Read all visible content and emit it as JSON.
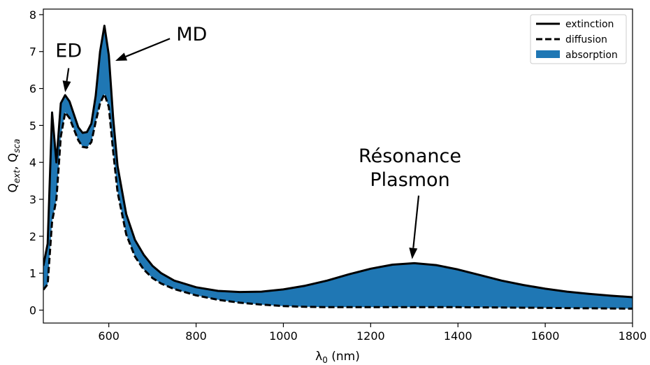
{
  "chart_data": {
    "type": "line",
    "xlabel": "λ",
    "xlabel_sub": "0",
    "xlabel_unit": " (nm)",
    "ylabel_parts": [
      "Q",
      "ext",
      ", Q",
      "sca"
    ],
    "xlim": [
      450,
      1800
    ],
    "ylim": [
      -0.35,
      8.15
    ],
    "xticks": [
      600,
      800,
      1000,
      1200,
      1400,
      1600,
      1800
    ],
    "yticks": [
      0,
      1,
      2,
      3,
      4,
      5,
      6,
      7,
      8
    ],
    "legend_position": "top-right",
    "colors": {
      "absorption": "#1f77b4",
      "line": "#000000"
    },
    "series": [
      {
        "name": "extinction",
        "style": "solid",
        "points": [
          [
            450,
            1.2
          ],
          [
            460,
            1.8
          ],
          [
            470,
            5.35
          ],
          [
            480,
            4.0
          ],
          [
            490,
            5.6
          ],
          [
            500,
            5.82
          ],
          [
            510,
            5.65
          ],
          [
            520,
            5.3
          ],
          [
            530,
            4.95
          ],
          [
            540,
            4.8
          ],
          [
            550,
            4.82
          ],
          [
            560,
            5.05
          ],
          [
            570,
            5.8
          ],
          [
            580,
            7.0
          ],
          [
            590,
            7.7
          ],
          [
            600,
            6.9
          ],
          [
            610,
            5.2
          ],
          [
            620,
            3.9
          ],
          [
            640,
            2.6
          ],
          [
            660,
            1.9
          ],
          [
            680,
            1.5
          ],
          [
            700,
            1.2
          ],
          [
            720,
            1.0
          ],
          [
            750,
            0.8
          ],
          [
            800,
            0.62
          ],
          [
            850,
            0.52
          ],
          [
            900,
            0.49
          ],
          [
            950,
            0.5
          ],
          [
            1000,
            0.56
          ],
          [
            1050,
            0.66
          ],
          [
            1100,
            0.8
          ],
          [
            1150,
            0.97
          ],
          [
            1200,
            1.12
          ],
          [
            1250,
            1.23
          ],
          [
            1300,
            1.27
          ],
          [
            1350,
            1.22
          ],
          [
            1400,
            1.1
          ],
          [
            1450,
            0.95
          ],
          [
            1500,
            0.8
          ],
          [
            1550,
            0.68
          ],
          [
            1600,
            0.58
          ],
          [
            1650,
            0.5
          ],
          [
            1700,
            0.44
          ],
          [
            1750,
            0.39
          ],
          [
            1800,
            0.35
          ]
        ]
      },
      {
        "name": "diffusion",
        "style": "dashed",
        "points": [
          [
            450,
            0.55
          ],
          [
            460,
            0.7
          ],
          [
            470,
            2.4
          ],
          [
            480,
            3.0
          ],
          [
            490,
            4.7
          ],
          [
            500,
            5.35
          ],
          [
            510,
            5.2
          ],
          [
            520,
            4.9
          ],
          [
            530,
            4.6
          ],
          [
            540,
            4.42
          ],
          [
            550,
            4.4
          ],
          [
            560,
            4.55
          ],
          [
            570,
            5.1
          ],
          [
            580,
            5.6
          ],
          [
            590,
            5.85
          ],
          [
            600,
            5.5
          ],
          [
            610,
            4.3
          ],
          [
            620,
            3.2
          ],
          [
            640,
            2.05
          ],
          [
            660,
            1.45
          ],
          [
            680,
            1.1
          ],
          [
            700,
            0.87
          ],
          [
            720,
            0.72
          ],
          [
            750,
            0.57
          ],
          [
            800,
            0.4
          ],
          [
            850,
            0.28
          ],
          [
            900,
            0.2
          ],
          [
            950,
            0.15
          ],
          [
            1000,
            0.11
          ],
          [
            1050,
            0.09
          ],
          [
            1100,
            0.08
          ],
          [
            1200,
            0.08
          ],
          [
            1300,
            0.08
          ],
          [
            1400,
            0.08
          ],
          [
            1500,
            0.07
          ],
          [
            1600,
            0.06
          ],
          [
            1700,
            0.05
          ],
          [
            1800,
            0.04
          ]
        ]
      },
      {
        "name": "absorption",
        "style": "fill"
      }
    ],
    "annotations": [
      {
        "lines": [
          "ED"
        ],
        "text_x": 508,
        "text_y": 6.85,
        "arrow_tail": [
          508,
          6.55
        ],
        "arrow_head": [
          500,
          5.9
        ]
      },
      {
        "lines": [
          "MD"
        ],
        "text_x": 790,
        "text_y": 7.3,
        "arrow_tail": [
          740,
          7.35
        ],
        "arrow_head": [
          615,
          6.75
        ]
      },
      {
        "lines": [
          "Résonance",
          "Plasmon"
        ],
        "text_x": 1290,
        "text_y": 4.0,
        "arrow_tail": [
          1310,
          3.1
        ],
        "arrow_head": [
          1295,
          1.38
        ]
      }
    ]
  }
}
